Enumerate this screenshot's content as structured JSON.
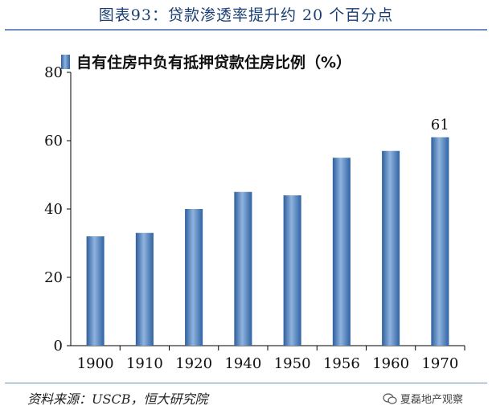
{
  "figure_title": "图表93：贷款渗透率提升约 20 个百分点",
  "source": "资料来源：USCB，恒大研究院",
  "watermark": "夏磊地产观察",
  "colors": {
    "bar": "#3f74b6",
    "bar_light": "#8fb3de",
    "title": "#1a3f73",
    "rule": "#6d8fc0"
  },
  "chart_data": {
    "type": "bar",
    "categories": [
      "1900",
      "1910",
      "1920",
      "1940",
      "1950",
      "1956",
      "1960",
      "1970"
    ],
    "series": [
      {
        "name": "自有住房中负有抵押贷款住房比例（%）",
        "values": [
          32,
          33,
          40,
          45,
          44,
          55,
          57,
          61
        ]
      }
    ],
    "ylim": [
      0,
      80
    ],
    "yticks": [
      0,
      20,
      40,
      60,
      80
    ],
    "data_labels": [
      {
        "category": "1970",
        "text": "61"
      }
    ],
    "legend": "top-left",
    "grid": false
  }
}
